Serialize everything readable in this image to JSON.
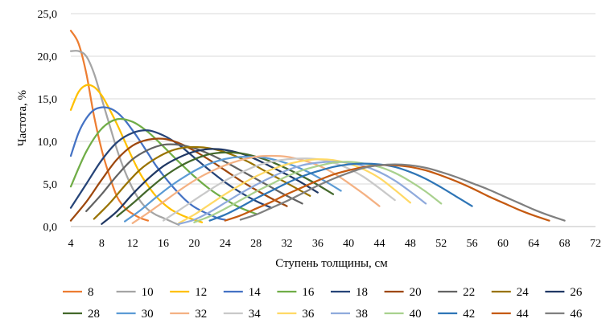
{
  "chart_data": {
    "type": "line",
    "xlabel": "Ступень  толщины,  см",
    "ylabel": "Частота, %",
    "xlim": [
      4,
      72
    ],
    "ylim": [
      0,
      25
    ],
    "x_ticks": [
      "4",
      "8",
      "12",
      "16",
      "20",
      "24",
      "28",
      "32",
      "36",
      "40",
      "44",
      "48",
      "52",
      "56",
      "60",
      "64",
      "68",
      "72"
    ],
    "y_ticks": [
      "0,0",
      "5,0",
      "10,0",
      "15,0",
      "20,0",
      "25,0"
    ],
    "grid": "horizontal",
    "legend_position": "bottom",
    "series": [
      {
        "name": "8",
        "color": "#ED7D31",
        "x": [
          4,
          5,
          6,
          7,
          8,
          9,
          10,
          11,
          12,
          13,
          14
        ],
        "y": [
          23,
          21.5,
          18,
          13,
          9,
          6,
          3.5,
          2.2,
          1.5,
          1,
          0.7
        ]
      },
      {
        "name": "10",
        "color": "#A5A5A5",
        "x": [
          4,
          5,
          6,
          7,
          8,
          9,
          10,
          11,
          12,
          13,
          14,
          15,
          16,
          17,
          18
        ],
        "y": [
          20.6,
          20.6,
          20,
          18,
          15,
          12,
          9,
          6.5,
          4.5,
          3,
          2,
          1.4,
          1,
          0.6,
          0.2
        ]
      },
      {
        "name": "12",
        "color": "#FFC000",
        "x": [
          4,
          5,
          6,
          7,
          8,
          9,
          10,
          11,
          12,
          13,
          14,
          15,
          16,
          17,
          18,
          19,
          20,
          21
        ],
        "y": [
          13.7,
          15.8,
          16.6,
          16.4,
          15.4,
          13.8,
          12,
          10,
          8,
          6.2,
          4.8,
          3.6,
          2.7,
          2,
          1.5,
          1.1,
          0.8,
          0.5
        ]
      },
      {
        "name": "14",
        "color": "#4472C4",
        "x": [
          4,
          5,
          6,
          7,
          8,
          9,
          10,
          11,
          12,
          13,
          14,
          15,
          16,
          17,
          18,
          19,
          20,
          21,
          22,
          23,
          24
        ],
        "y": [
          8.3,
          11,
          12.7,
          13.7,
          14,
          13.9,
          13.4,
          12.5,
          11.3,
          10,
          8.6,
          7.2,
          6,
          4.9,
          3.9,
          3,
          2.3,
          1.8,
          1.4,
          1,
          0.8
        ]
      },
      {
        "name": "16",
        "color": "#70AD47",
        "x": [
          4,
          6,
          8,
          10,
          12,
          14,
          16,
          18,
          20,
          22,
          24,
          26,
          28
        ],
        "y": [
          4.7,
          8.8,
          11.5,
          12.6,
          12.3,
          11.1,
          9.4,
          7.6,
          5.9,
          4.4,
          3.2,
          2.2,
          1.5
        ]
      },
      {
        "name": "18",
        "color": "#264478",
        "x": [
          4,
          6,
          8,
          10,
          12,
          14,
          16,
          18,
          20,
          22,
          24,
          26,
          28,
          30
        ],
        "y": [
          2.2,
          5,
          7.8,
          9.9,
          11,
          11.3,
          10.7,
          9.6,
          8.1,
          6.6,
          5.2,
          4,
          3,
          2.2
        ]
      },
      {
        "name": "20",
        "color": "#9E480E",
        "x": [
          4,
          6,
          8,
          10,
          12,
          14,
          16,
          18,
          20,
          22,
          24,
          26,
          28,
          30,
          32
        ],
        "y": [
          0.7,
          2.9,
          5.5,
          7.9,
          9.5,
          10.2,
          10.3,
          9.8,
          8.9,
          7.8,
          6.6,
          5.4,
          4.3,
          3.3,
          2.4
        ]
      },
      {
        "name": "22",
        "color": "#636363",
        "x": [
          6,
          8,
          10,
          12,
          14,
          16,
          18,
          20,
          22,
          24,
          26,
          28,
          30,
          32,
          34
        ],
        "y": [
          1.8,
          3.8,
          6,
          7.9,
          9,
          9.6,
          9.6,
          9.2,
          8.5,
          7.6,
          6.6,
          5.6,
          4.6,
          3.6,
          2.7
        ]
      },
      {
        "name": "24",
        "color": "#997300",
        "x": [
          7,
          9,
          11,
          13,
          15,
          17,
          19,
          21,
          23,
          25,
          27,
          29,
          31,
          33,
          35
        ],
        "y": [
          0.9,
          2.7,
          4.8,
          6.7,
          8,
          8.9,
          9.3,
          9.3,
          9,
          8.4,
          7.6,
          6.6,
          5.6,
          4.6,
          3.6
        ]
      },
      {
        "name": "26",
        "color": "#203864",
        "x": [
          8,
          10,
          12,
          14,
          16,
          18,
          20,
          22,
          24,
          26,
          28,
          30,
          32,
          34,
          36
        ],
        "y": [
          0.3,
          1.8,
          3.8,
          5.6,
          7.1,
          8.1,
          8.8,
          9.1,
          9,
          8.6,
          7.9,
          7,
          6.1,
          5.1,
          4
        ]
      },
      {
        "name": "28",
        "color": "#43682B",
        "x": [
          10,
          12,
          14,
          16,
          18,
          20,
          22,
          24,
          26,
          28,
          30,
          32,
          34,
          36,
          38
        ],
        "y": [
          1.2,
          2.7,
          4.3,
          5.8,
          7,
          7.9,
          8.5,
          8.7,
          8.6,
          8.2,
          7.6,
          6.8,
          5.9,
          4.9,
          3.8
        ]
      },
      {
        "name": "30",
        "color": "#5B9BD5",
        "x": [
          11,
          13,
          15,
          17,
          19,
          21,
          23,
          25,
          27,
          29,
          31,
          33,
          35,
          37,
          39
        ],
        "y": [
          0.6,
          1.9,
          3.4,
          4.8,
          6,
          7,
          7.7,
          8.1,
          8.2,
          8.1,
          7.7,
          7.1,
          6.3,
          5.3,
          4.2
        ]
      },
      {
        "name": "32",
        "color": "#F4B183",
        "x": [
          12,
          14,
          16,
          18,
          20,
          22,
          24,
          26,
          28,
          30,
          32,
          34,
          36,
          38,
          40,
          42,
          44
        ],
        "y": [
          0.4,
          1.6,
          2.9,
          4.2,
          5.4,
          6.4,
          7.2,
          7.8,
          8.2,
          8.3,
          8.2,
          7.8,
          7.2,
          6.3,
          5.1,
          3.8,
          2.4
        ]
      },
      {
        "name": "34",
        "color": "#C9C9C9",
        "x": [
          16,
          18,
          20,
          22,
          24,
          26,
          28,
          30,
          32,
          34,
          36,
          38,
          40,
          42,
          44,
          46
        ],
        "y": [
          0.7,
          1.9,
          3.1,
          4.3,
          5.4,
          6.3,
          7.1,
          7.6,
          7.9,
          8,
          7.9,
          7.5,
          6.8,
          5.8,
          4.5,
          3.1
        ]
      },
      {
        "name": "36",
        "color": "#FFD966",
        "x": [
          18,
          20,
          22,
          24,
          26,
          28,
          30,
          32,
          34,
          36,
          38,
          40,
          42,
          44,
          46,
          48
        ],
        "y": [
          0.4,
          1.4,
          2.6,
          3.8,
          4.9,
          5.9,
          6.7,
          7.3,
          7.7,
          7.9,
          7.8,
          7.4,
          6.7,
          5.7,
          4.3,
          2.8
        ]
      },
      {
        "name": "38",
        "color": "#8FAADC",
        "x": [
          18,
          20,
          22,
          24,
          26,
          28,
          30,
          32,
          34,
          36,
          38,
          40,
          42,
          44,
          46,
          48,
          50
        ],
        "y": [
          0.3,
          0.8,
          1.7,
          2.8,
          3.9,
          4.9,
          5.8,
          6.6,
          7.2,
          7.5,
          7.6,
          7.5,
          7.1,
          6.4,
          5.4,
          4.1,
          2.7
        ]
      },
      {
        "name": "40",
        "color": "#A9D18E",
        "x": [
          20,
          22,
          24,
          26,
          28,
          30,
          32,
          34,
          36,
          38,
          40,
          42,
          44,
          46,
          48,
          50,
          52
        ],
        "y": [
          0.5,
          1.2,
          2.1,
          3.1,
          4.1,
          5,
          5.9,
          6.6,
          7.1,
          7.5,
          7.6,
          7.4,
          7,
          6.3,
          5.3,
          4.1,
          2.7
        ]
      },
      {
        "name": "42",
        "color": "#2E75B6",
        "x": [
          22,
          24,
          26,
          28,
          30,
          32,
          34,
          36,
          38,
          40,
          42,
          44,
          46,
          48,
          50,
          52,
          54,
          56
        ],
        "y": [
          0.7,
          1.4,
          2.3,
          3.3,
          4.2,
          5.1,
          5.9,
          6.5,
          7,
          7.3,
          7.4,
          7.3,
          7,
          6.4,
          5.6,
          4.6,
          3.5,
          2.4
        ]
      },
      {
        "name": "44",
        "color": "#C55A11",
        "x": [
          24,
          26,
          28,
          30,
          32,
          34,
          36,
          38,
          40,
          42,
          44,
          46,
          48,
          50,
          52,
          54,
          56,
          58,
          60,
          62,
          64,
          66
        ],
        "y": [
          0.7,
          1.3,
          2.1,
          2.9,
          3.8,
          4.6,
          5.4,
          6.1,
          6.6,
          7,
          7.2,
          7.2,
          7,
          6.6,
          6,
          5.3,
          4.5,
          3.6,
          2.8,
          2,
          1.3,
          0.7
        ]
      },
      {
        "name": "46",
        "color": "#7F7F7F",
        "x": [
          26,
          28,
          30,
          32,
          34,
          36,
          38,
          40,
          42,
          44,
          46,
          48,
          50,
          52,
          54,
          56,
          58,
          60,
          62,
          64,
          66,
          68
        ],
        "y": [
          0.8,
          1.4,
          2.2,
          3,
          3.9,
          4.8,
          5.6,
          6.3,
          6.9,
          7.2,
          7.3,
          7.2,
          6.9,
          6.4,
          5.8,
          5.1,
          4.4,
          3.6,
          2.8,
          2,
          1.3,
          0.7
        ]
      }
    ]
  }
}
